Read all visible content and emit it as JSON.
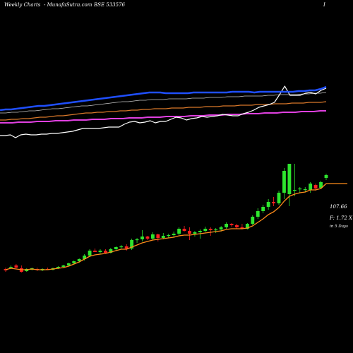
{
  "header": {
    "chart_label": "Weekly Charts",
    "site": "- MunafaSutra.com",
    "symbol": "BSE 533576",
    "marker": "I"
  },
  "side_labels": {
    "price": "107.66",
    "change": "F: 1.72  X",
    "period": "in 5 Days"
  },
  "colors": {
    "background": "#000000",
    "up": "#2ee52e",
    "down": "#ff2020",
    "ema_short": "#ff8c1a",
    "ema_blue": "#1f4fff",
    "ema_orange": "#d9782a",
    "ema_magenta": "#e040e0",
    "ema_gray": "#c8c8c8",
    "price_line": "#ffffff"
  },
  "chart_data": {
    "type": "candlestick",
    "y_range": [
      0,
      500
    ],
    "candles": [
      {
        "o": 119,
        "h": 121,
        "l": 115,
        "c": 117
      },
      {
        "o": 121,
        "h": 124,
        "l": 120,
        "c": 122
      },
      {
        "o": 124,
        "h": 126,
        "l": 120,
        "c": 121
      },
      {
        "o": 120,
        "h": 124,
        "l": 114,
        "c": 115
      },
      {
        "o": 116,
        "h": 120,
        "l": 115,
        "c": 119
      },
      {
        "o": 118,
        "h": 121,
        "l": 117,
        "c": 120
      },
      {
        "o": 119,
        "h": 121,
        "l": 116,
        "c": 118
      },
      {
        "o": 117,
        "h": 120,
        "l": 116,
        "c": 119
      },
      {
        "o": 119,
        "h": 121,
        "l": 118,
        "c": 118
      },
      {
        "o": 118,
        "h": 121,
        "l": 117,
        "c": 120
      },
      {
        "o": 120,
        "h": 123,
        "l": 119,
        "c": 122
      },
      {
        "o": 122,
        "h": 125,
        "l": 121,
        "c": 124
      },
      {
        "o": 124,
        "h": 128,
        "l": 123,
        "c": 127
      },
      {
        "o": 127,
        "h": 131,
        "l": 126,
        "c": 130
      },
      {
        "o": 130,
        "h": 134,
        "l": 128,
        "c": 133
      },
      {
        "o": 133,
        "h": 140,
        "l": 131,
        "c": 138
      },
      {
        "o": 138,
        "h": 147,
        "l": 136,
        "c": 145
      },
      {
        "o": 145,
        "h": 148,
        "l": 143,
        "c": 143
      },
      {
        "o": 143,
        "h": 147,
        "l": 141,
        "c": 145
      },
      {
        "o": 145,
        "h": 147,
        "l": 141,
        "c": 142
      },
      {
        "o": 142,
        "h": 149,
        "l": 141,
        "c": 147
      },
      {
        "o": 147,
        "h": 151,
        "l": 145,
        "c": 150
      },
      {
        "o": 150,
        "h": 153,
        "l": 148,
        "c": 151
      },
      {
        "o": 151,
        "h": 154,
        "l": 145,
        "c": 148
      },
      {
        "o": 148,
        "h": 162,
        "l": 146,
        "c": 160
      },
      {
        "o": 160,
        "h": 163,
        "l": 156,
        "c": 161
      },
      {
        "o": 161,
        "h": 174,
        "l": 158,
        "c": 165
      },
      {
        "o": 165,
        "h": 166,
        "l": 160,
        "c": 162
      },
      {
        "o": 162,
        "h": 171,
        "l": 160,
        "c": 168
      },
      {
        "o": 168,
        "h": 169,
        "l": 158,
        "c": 163
      },
      {
        "o": 163,
        "h": 170,
        "l": 161,
        "c": 166
      },
      {
        "o": 166,
        "h": 169,
        "l": 163,
        "c": 167
      },
      {
        "o": 167,
        "h": 172,
        "l": 164,
        "c": 169
      },
      {
        "o": 169,
        "h": 178,
        "l": 167,
        "c": 176
      },
      {
        "o": 176,
        "h": 180,
        "l": 172,
        "c": 173
      },
      {
        "o": 173,
        "h": 178,
        "l": 160,
        "c": 169
      },
      {
        "o": 169,
        "h": 173,
        "l": 165,
        "c": 171
      },
      {
        "o": 171,
        "h": 175,
        "l": 162,
        "c": 173
      },
      {
        "o": 173,
        "h": 179,
        "l": 171,
        "c": 176
      },
      {
        "o": 176,
        "h": 178,
        "l": 166,
        "c": 174
      },
      {
        "o": 174,
        "h": 177,
        "l": 170,
        "c": 175
      },
      {
        "o": 175,
        "h": 180,
        "l": 172,
        "c": 178
      },
      {
        "o": 178,
        "h": 185,
        "l": 176,
        "c": 183
      },
      {
        "o": 183,
        "h": 184,
        "l": 179,
        "c": 181
      },
      {
        "o": 181,
        "h": 183,
        "l": 176,
        "c": 178
      },
      {
        "o": 178,
        "h": 183,
        "l": 175,
        "c": 176
      },
      {
        "o": 176,
        "h": 184,
        "l": 175,
        "c": 183
      },
      {
        "o": 183,
        "h": 195,
        "l": 181,
        "c": 193
      },
      {
        "o": 193,
        "h": 205,
        "l": 190,
        "c": 201
      },
      {
        "o": 201,
        "h": 210,
        "l": 198,
        "c": 207
      },
      {
        "o": 207,
        "h": 218,
        "l": 203,
        "c": 214
      },
      {
        "o": 214,
        "h": 221,
        "l": 208,
        "c": 212
      },
      {
        "o": 212,
        "h": 230,
        "l": 210,
        "c": 227
      },
      {
        "o": 227,
        "h": 262,
        "l": 218,
        "c": 258
      },
      {
        "o": 225,
        "h": 268,
        "l": 208,
        "c": 268
      },
      {
        "o": 230,
        "h": 268,
        "l": 222,
        "c": 231
      },
      {
        "o": 232,
        "h": 235,
        "l": 226,
        "c": 233
      },
      {
        "o": 232,
        "h": 235,
        "l": 228,
        "c": 232
      },
      {
        "o": 231,
        "h": 242,
        "l": 227,
        "c": 240
      },
      {
        "o": 238,
        "h": 240,
        "l": 230,
        "c": 233
      },
      {
        "o": 234,
        "h": 244,
        "l": 232,
        "c": 242
      },
      {
        "o": 248,
        "h": 254,
        "l": 245,
        "c": 252
      }
    ],
    "ema_short": [
      118,
      120,
      119,
      118,
      118,
      119,
      118,
      118,
      118,
      119,
      120,
      121,
      123,
      126,
      129,
      133,
      137,
      139,
      140,
      141,
      143,
      145,
      147,
      147,
      150,
      153,
      156,
      158,
      160,
      161,
      162,
      163,
      164,
      166,
      167,
      167,
      168,
      169,
      170,
      171,
      172,
      173,
      175,
      176,
      176,
      176,
      177,
      180,
      185,
      190,
      196,
      200,
      206,
      215,
      222,
      225,
      227,
      228,
      231,
      231,
      233,
      240
    ],
    "ema_blue": [
      344,
      345,
      345,
      346,
      347,
      348,
      349,
      350,
      350,
      351,
      352,
      353,
      354,
      355,
      356,
      357,
      358,
      359,
      360,
      361,
      362,
      363,
      364,
      365,
      366,
      367,
      368,
      369,
      369,
      369,
      368,
      368,
      368,
      368,
      368,
      369,
      369,
      369,
      369,
      369,
      369,
      369,
      370,
      370,
      370,
      370,
      369,
      370,
      370,
      370,
      370,
      370,
      370,
      370,
      371,
      371,
      372,
      372,
      374,
      377
    ],
    "ema_orange": [
      330,
      330,
      331,
      331,
      332,
      332,
      333,
      334,
      334,
      335,
      336,
      336,
      337,
      338,
      339,
      340,
      340,
      341,
      341,
      342,
      342,
      343,
      343,
      344,
      344,
      345,
      345,
      346,
      346,
      346,
      347,
      347,
      347,
      348,
      348,
      348,
      349,
      349,
      349,
      350,
      350,
      350,
      351,
      351,
      351,
      352,
      352,
      352,
      353,
      353,
      353,
      354,
      354,
      354,
      355,
      355,
      355,
      356
    ],
    "ema_magenta": [
      326,
      326,
      326,
      327,
      327,
      327,
      328,
      328,
      328,
      329,
      329,
      329,
      330,
      330,
      330,
      331,
      331,
      331,
      332,
      332,
      332,
      333,
      333,
      333,
      334,
      334,
      334,
      335,
      335,
      335,
      335,
      336,
      336,
      336,
      337,
      337,
      337,
      338,
      338,
      338,
      339,
      339,
      339,
      340,
      340,
      340,
      341,
      341,
      341,
      342,
      342,
      342,
      343,
      343
    ],
    "ema_gray": [
      340,
      340,
      341,
      341,
      342,
      343,
      343,
      344,
      345,
      346,
      346,
      347,
      348,
      349,
      350,
      350,
      351,
      352,
      353,
      354,
      355,
      356,
      356,
      357,
      358,
      358,
      359,
      359,
      359,
      360,
      360,
      360,
      360,
      361,
      361,
      361,
      362,
      362,
      362,
      363,
      363,
      363,
      364,
      364,
      364,
      364,
      365,
      365,
      366,
      366,
      366,
      366,
      367,
      367,
      368,
      368,
      369
    ],
    "price_line": [
      308,
      308,
      309,
      305,
      309,
      310,
      309,
      309,
      310,
      310,
      311,
      311,
      312,
      313,
      314,
      316,
      318,
      318,
      318,
      318,
      319,
      320,
      320,
      320,
      324,
      327,
      328,
      326,
      327,
      329,
      326,
      328,
      328,
      331,
      334,
      333,
      330,
      332,
      333,
      335,
      334,
      335,
      336,
      338,
      337,
      336,
      336,
      339,
      341,
      344,
      348,
      350,
      352,
      355,
      366,
      378,
      365,
      365,
      365,
      368,
      369,
      367,
      372,
      375
    ]
  }
}
